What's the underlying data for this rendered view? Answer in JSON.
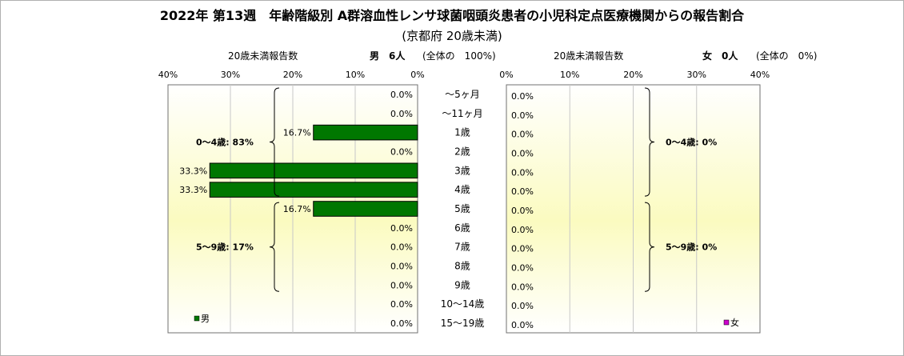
{
  "title": "2022年 第13週　年齢階級別 A群溶血性レンサ球菌咽頭炎患者の小児科定点医療機関からの報告割合",
  "subtitle": "(京都府 20歳未満)",
  "header": {
    "left_count_label": "20歳未満報告数",
    "left_total": "男　6人",
    "left_share": "(全体の　100%)",
    "right_count_label": "20歳未満報告数",
    "right_total": "女　0人",
    "right_share": "(全体の　0%)"
  },
  "chart_data": {
    "type": "bar",
    "orientation": "horizontal-population-pyramid",
    "categories": [
      "～5ヶ月",
      "～11ヶ月",
      "1歳",
      "2歳",
      "3歳",
      "4歳",
      "5歳",
      "6歳",
      "7歳",
      "8歳",
      "9歳",
      "10～14歳",
      "15～19歳"
    ],
    "x_ticks": [
      "40%",
      "30%",
      "20%",
      "10%",
      "0%"
    ],
    "x_ticks_right": [
      "0%",
      "10%",
      "20%",
      "30%",
      "40%"
    ],
    "xlim": [
      0,
      40
    ],
    "grid": true,
    "series": [
      {
        "name": "男",
        "side": "left",
        "color": "#007700",
        "values": [
          0,
          0,
          16.7,
          0,
          33.3,
          33.3,
          16.7,
          0,
          0,
          0,
          0,
          0,
          0
        ],
        "labels": [
          "0.0%",
          "0.0%",
          "16.7%",
          "0.0%",
          "33.3%",
          "33.3%",
          "16.7%",
          "0.0%",
          "0.0%",
          "0.0%",
          "0.0%",
          "0.0%",
          "0.0%"
        ]
      },
      {
        "name": "女",
        "side": "right",
        "color": "#cc00cc",
        "values": [
          0,
          0,
          0,
          0,
          0,
          0,
          0,
          0,
          0,
          0,
          0,
          0,
          0
        ],
        "labels": [
          "0.0%",
          "0.0%",
          "0.0%",
          "0.0%",
          "0.0%",
          "0.0%",
          "0.0%",
          "0.0%",
          "0.0%",
          "0.0%",
          "0.0%",
          "0.0%",
          "0.0%"
        ]
      }
    ],
    "groups_left": [
      {
        "label": "0～4歳: 83%",
        "from": 0,
        "to": 5
      },
      {
        "label": "5～9歳: 17%",
        "from": 6,
        "to": 10
      }
    ],
    "groups_right": [
      {
        "label": "0～4歳: 0%",
        "from": 0,
        "to": 5
      },
      {
        "label": "5～9歳: 0%",
        "from": 6,
        "to": 10
      }
    ],
    "legend_left": "男",
    "legend_right": "女"
  }
}
